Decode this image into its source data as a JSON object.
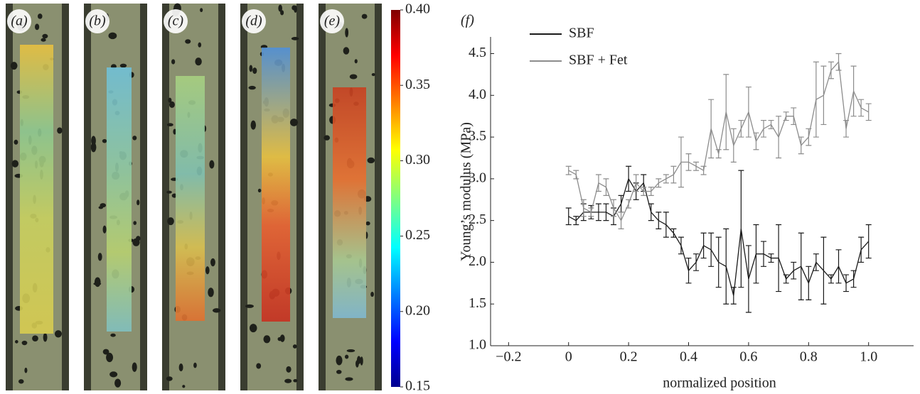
{
  "images": [
    "(a)",
    "(b)",
    "(c)",
    "(d)",
    "(e)"
  ],
  "colorbar": {
    "ylim": [
      0.15,
      0.4
    ],
    "yticks": [
      {
        "value": 0.4,
        "label": "0.40"
      },
      0.35,
      {
        "value": 0.3,
        "label": "0.30"
      },
      0.25,
      {
        "value": 0.2,
        "label": "0.20"
      },
      0.15
    ]
  },
  "chart_data": {
    "type": "line",
    "panel_label": "(f)",
    "x_label": "normalized position",
    "y_label": "Young’s modulus (MPa)",
    "x": [
      0,
      0.025,
      0.05,
      0.075,
      0.1,
      0.125,
      0.15,
      0.175,
      0.2,
      0.225,
      0.25,
      0.275,
      0.3,
      0.325,
      0.35,
      0.375,
      0.4,
      0.425,
      0.45,
      0.475,
      0.5,
      0.525,
      0.55,
      0.575,
      0.6,
      0.625,
      0.65,
      0.675,
      0.7,
      0.725,
      0.75,
      0.775,
      0.8,
      0.825,
      0.85,
      0.875,
      0.9,
      0.925,
      0.95,
      0.975,
      1.0
    ],
    "series": [
      {
        "name": "SBF",
        "color": "#1a1a1a",
        "values": [
          2.55,
          2.5,
          2.6,
          2.6,
          2.6,
          2.6,
          2.55,
          2.7,
          3.0,
          2.85,
          2.95,
          2.6,
          2.5,
          2.45,
          2.35,
          2.2,
          1.9,
          2.0,
          2.2,
          2.15,
          2.0,
          1.95,
          1.6,
          2.4,
          1.8,
          2.1,
          2.1,
          2.05,
          2.05,
          1.8,
          1.9,
          1.95,
          1.75,
          2.0,
          1.9,
          1.8,
          1.95,
          1.75,
          1.8,
          2.15,
          2.25
        ],
        "errors": [
          0.1,
          0.05,
          0.1,
          0.08,
          0.1,
          0.1,
          0.1,
          0.1,
          0.15,
          0.1,
          0.1,
          0.1,
          0.1,
          0.15,
          0.05,
          0.1,
          0.15,
          0.1,
          0.15,
          0.2,
          0.3,
          0.45,
          0.1,
          0.7,
          0.4,
          0.35,
          0.15,
          0.05,
          0.4,
          0.05,
          0.1,
          0.4,
          0.2,
          0.1,
          0.4,
          0.05,
          0.2,
          0.1,
          0.1,
          0.15,
          0.2
        ]
      },
      {
        "name": "SBF + Fet",
        "color": "#8c8c8c",
        "values": [
          3.1,
          3.05,
          2.65,
          2.6,
          2.95,
          2.9,
          2.65,
          2.5,
          2.7,
          2.95,
          2.85,
          2.85,
          2.95,
          3.0,
          3.05,
          3.2,
          3.2,
          3.15,
          3.1,
          3.6,
          3.3,
          3.8,
          3.4,
          3.6,
          3.8,
          3.45,
          3.6,
          3.65,
          3.5,
          3.75,
          3.75,
          3.4,
          3.5,
          3.95,
          4.0,
          4.3,
          4.4,
          3.6,
          4.05,
          3.85,
          3.8
        ],
        "errors": [
          0.05,
          0.05,
          0.1,
          0.05,
          0.1,
          0.1,
          0.1,
          0.1,
          0.05,
          0.1,
          0.05,
          0.05,
          0.05,
          0.05,
          0.1,
          0.3,
          0.1,
          0.05,
          0.05,
          0.35,
          0.05,
          0.45,
          0.2,
          0.1,
          0.3,
          0.1,
          0.1,
          0.05,
          0.25,
          0.05,
          0.1,
          0.1,
          0.1,
          0.45,
          0.35,
          0.1,
          0.1,
          0.1,
          0.3,
          0.1,
          0.1
        ]
      }
    ],
    "xlim": [
      -0.26,
      1.15
    ],
    "ylim": [
      1.0,
      4.7
    ],
    "xticks": [
      {
        "value": -0.2,
        "label": "−0.2"
      },
      0,
      0.2,
      0.4,
      0.6,
      0.8,
      {
        "value": 1.0,
        "label": "1.0"
      }
    ],
    "yticks": [
      {
        "value": 1.0,
        "label": "1.0"
      },
      1.5,
      {
        "value": 2.0,
        "label": "2.0"
      },
      2.5,
      {
        "value": 3.0,
        "label": "3.0"
      },
      3.5,
      {
        "value": 4.0,
        "label": "4.0"
      },
      4.5
    ],
    "legend": "upper left"
  }
}
